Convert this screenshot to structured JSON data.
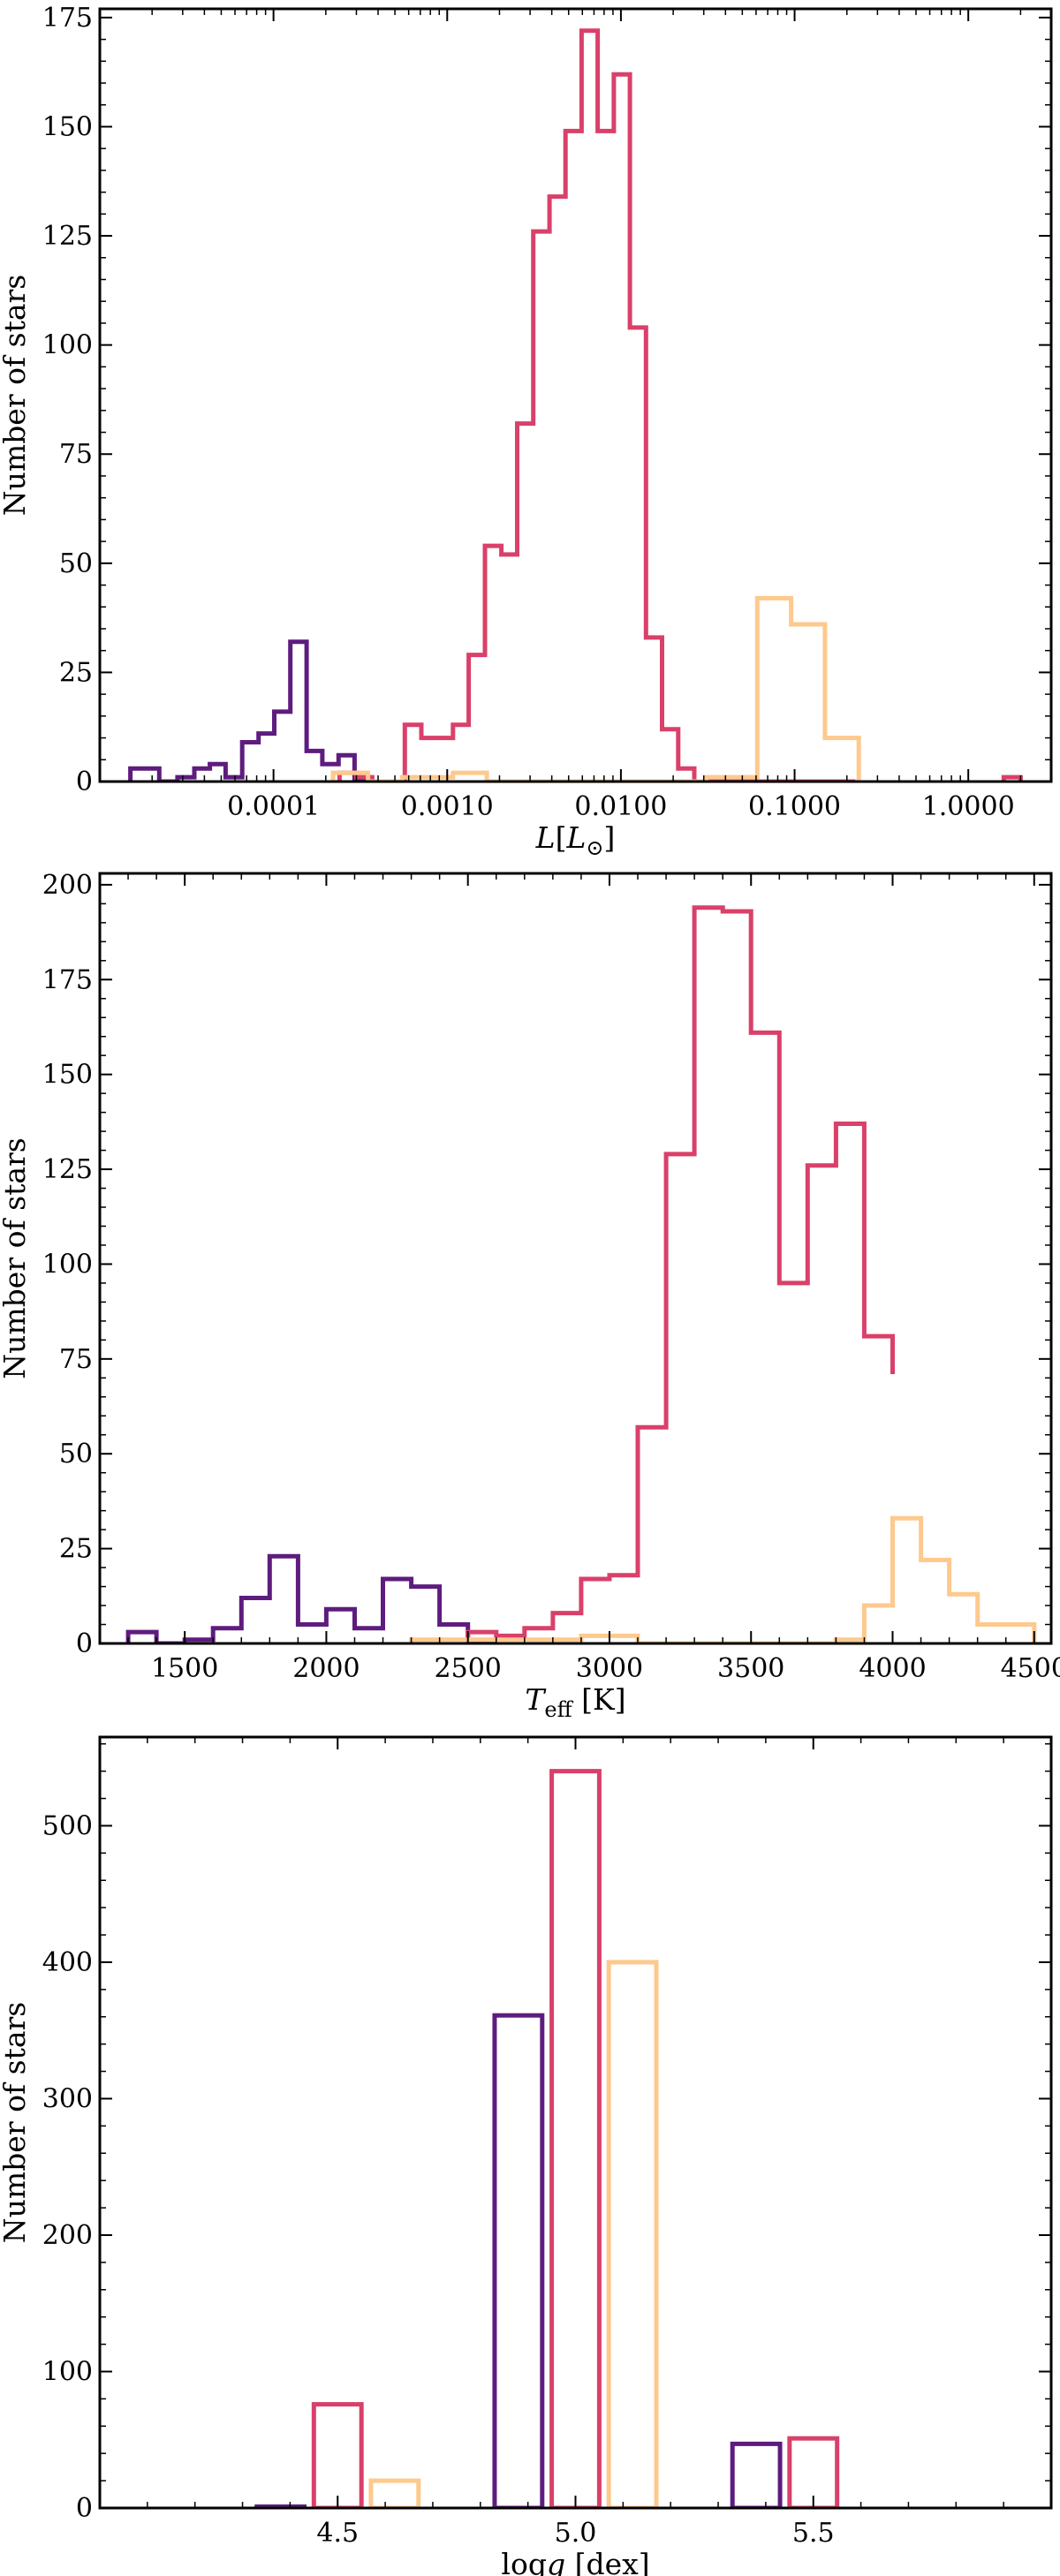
{
  "chart_data": [
    {
      "type": "histogram",
      "title": "",
      "xlabel": "L[L_⊙]",
      "ylabel": "Number of stars",
      "xscale": "log",
      "xlim": [
        1e-05,
        3.0
      ],
      "ylim": [
        0,
        177
      ],
      "xticks": [
        0.0001,
        0.001,
        0.01,
        0.1,
        1.0
      ],
      "xtick_labels": [
        "0.0001",
        "0.0010",
        "0.0100",
        "0.1000",
        "1.0000"
      ],
      "yticks": [
        0,
        25,
        50,
        75,
        100,
        125,
        150,
        175
      ],
      "ytick_labels": [
        "0",
        "25",
        "50",
        "75",
        "100",
        "125",
        "150",
        "175"
      ],
      "grid": false,
      "series": [
        {
          "color": "#5e1c7e",
          "edges": [
            1.5e-05,
            2.2e-05,
            2.8e-05,
            3.5e-05,
            4.3e-05,
            5.3e-05,
            6.6e-05,
            8.2e-05,
            0.000101,
            0.000125,
            0.000155,
            0.000191,
            0.000237,
            0.000293,
            0.000362,
            0.000448
          ],
          "counts": [
            3,
            0,
            1,
            3,
            4,
            1,
            9,
            11,
            16,
            32,
            7,
            4,
            6,
            0,
            0
          ]
        },
        {
          "color": "#d9406a",
          "edges": [
            0.00024,
            0.0003,
            0.00037,
            0.00046,
            0.00057,
            0.00071,
            0.00087,
            0.00108,
            0.00133,
            0.00165,
            0.00205,
            0.00253,
            0.00313,
            0.00388,
            0.0048,
            0.00594,
            0.00735,
            0.0091,
            0.01127,
            0.01394,
            0.01726,
            0.02137,
            0.02645,
            0.03275,
            0.04054,
            0.05018,
            0.06212,
            0.0769,
            0.0952,
            0.11786,
            0.1459,
            0.1806,
            0.2236
          ],
          "counts": [
            2,
            1,
            0,
            0,
            13,
            10,
            10,
            13,
            29,
            54,
            52,
            82,
            126,
            134,
            149,
            172,
            149,
            162,
            104,
            33,
            12,
            3,
            0,
            0,
            0,
            0,
            0,
            0,
            0,
            0,
            0,
            0
          ]
        },
        {
          "color": "#d9406a",
          "edges": [
            1.6,
            2.0
          ],
          "counts": [
            1
          ]
        },
        {
          "color": "#fec98d",
          "edges": [
            0.00022,
            0.00028,
            0.00035,
            0.00044,
            0.00055,
            0.00069,
            0.00086,
            0.00108,
            0.00135,
            0.00169,
            0.00212,
            0.00265,
            0.0033,
            0.0042,
            0.0052,
            0.0065,
            0.0081,
            0.0101,
            0.0127,
            0.0159,
            0.0199,
            0.0249,
            0.0311,
            0.039,
            0.0488,
            0.061,
            0.0763,
            0.0955,
            0.1195,
            0.1495,
            0.1871,
            0.2342
          ],
          "counts": [
            2,
            2,
            0,
            0,
            1,
            1,
            1,
            2,
            2,
            0,
            0,
            0,
            0,
            0,
            0,
            0,
            0,
            0,
            0,
            0,
            0,
            0,
            1,
            1,
            1,
            42,
            42,
            36,
            36,
            10,
            10
          ]
        }
      ]
    },
    {
      "type": "histogram",
      "title": "",
      "xlabel": "T_eff [K]",
      "ylabel": "Number of stars",
      "xscale": "linear",
      "xlim": [
        1200,
        4560
      ],
      "ylim": [
        0,
        203
      ],
      "xticks": [
        1500,
        2000,
        2500,
        3000,
        3500,
        4000,
        4500
      ],
      "xtick_labels": [
        "1500",
        "2000",
        "2500",
        "3000",
        "3500",
        "4000",
        "4500"
      ],
      "yticks": [
        0,
        25,
        50,
        75,
        100,
        125,
        150,
        175,
        200
      ],
      "ytick_labels": [
        "0",
        "25",
        "50",
        "75",
        "100",
        "125",
        "150",
        "175",
        "200"
      ],
      "grid": false,
      "series": [
        {
          "color": "#5e1c7e",
          "edges": [
            1300,
            1400,
            1500,
            1600,
            1700,
            1800,
            1900,
            2000,
            2100,
            2200,
            2300,
            2400,
            2500,
            2600
          ],
          "counts": [
            3,
            0,
            1,
            4,
            12,
            23,
            5,
            9,
            4,
            17,
            15,
            5,
            0
          ]
        },
        {
          "color": "#d9406a",
          "edges": [
            2500,
            2600,
            2700,
            2800,
            2900,
            3000,
            3100,
            3200,
            3300,
            3400,
            3500,
            3600,
            3700,
            3800,
            3900,
            4000
          ],
          "counts": [
            3,
            2,
            4,
            8,
            17,
            18,
            57,
            129,
            194,
            193,
            161,
            95,
            126,
            137,
            81,
            71
          ]
        },
        {
          "color": "#fec98d",
          "edges": [
            2300,
            2400,
            2500,
            2600,
            2700,
            2800,
            2900,
            3000,
            3100,
            3200,
            3300,
            3400,
            3500,
            3600,
            3700,
            3800,
            3900,
            4000,
            4100,
            4200,
            4300,
            4400,
            4500
          ],
          "counts": [
            1,
            1,
            1,
            1,
            1,
            1,
            2,
            2,
            0,
            0,
            0,
            0,
            0,
            0,
            0,
            1,
            10,
            33,
            22,
            13,
            5,
            5
          ]
        }
      ]
    },
    {
      "type": "bar",
      "title": "",
      "xlabel": "log g [dex]",
      "ylabel": "Number of stars",
      "xlim": [
        4.0,
        6.0
      ],
      "ylim": [
        0,
        565
      ],
      "xticks": [
        4.5,
        5.0,
        5.5
      ],
      "xtick_labels": [
        "4.5",
        "5.0",
        "5.5"
      ],
      "yticks": [
        0,
        100,
        200,
        300,
        400,
        500
      ],
      "ytick_labels": [
        "0",
        "100",
        "200",
        "300",
        "400",
        "500"
      ],
      "grid": false,
      "series": [
        {
          "color": "#5e1c7e",
          "bars": [
            {
              "x0": 4.33,
              "x1": 4.43,
              "value": 1
            },
            {
              "x0": 4.83,
              "x1": 4.93,
              "value": 361
            },
            {
              "x0": 5.33,
              "x1": 5.43,
              "value": 47
            }
          ]
        },
        {
          "color": "#d9406a",
          "bars": [
            {
              "x0": 4.45,
              "x1": 4.55,
              "value": 76
            },
            {
              "x0": 4.95,
              "x1": 5.05,
              "value": 540
            },
            {
              "x0": 5.45,
              "x1": 5.55,
              "value": 51
            }
          ]
        },
        {
          "color": "#fec98d",
          "bars": [
            {
              "x0": 4.57,
              "x1": 4.67,
              "value": 20
            },
            {
              "x0": 5.07,
              "x1": 5.17,
              "value": 400
            },
            {
              "x0": 5.57,
              "x1": 5.67,
              "value": 0
            }
          ]
        }
      ]
    }
  ]
}
